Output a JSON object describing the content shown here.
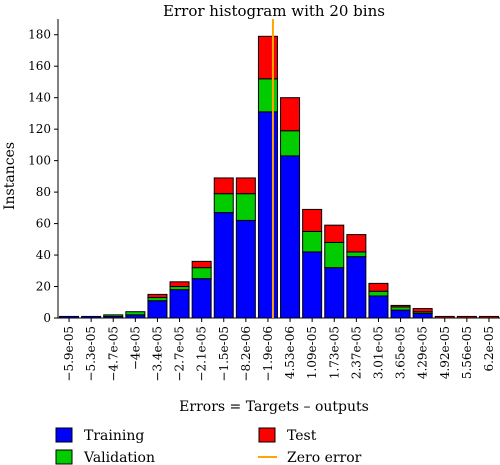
{
  "chart_data": {
    "type": "bar",
    "stacked": true,
    "title": "Error histogram with 20 bins",
    "xlabel": "Errors = Targets – outputs",
    "ylabel": "Instances",
    "ylim": [
      0,
      190
    ],
    "yticks": [
      0,
      20,
      40,
      60,
      80,
      100,
      120,
      140,
      160,
      180
    ],
    "categories": [
      "−5.9e-05",
      "−5.3e-05",
      "−4.7e-05",
      "−4e-05",
      "−3.4e-05",
      "−2.7e-05",
      "−2.1e-05",
      "−1.5e-05",
      "−8.2e-06",
      "−1.9e-06",
      "4.53e-06",
      "1.09e-05",
      "1.73e-05",
      "2.37e-05",
      "3.01e-05",
      "3.65e-05",
      "4.29e-05",
      "4.92e-05",
      "5.56e-05",
      "6.2e-05"
    ],
    "series": [
      {
        "name": "Training",
        "color": "#0000ff",
        "values": [
          1,
          1,
          1,
          2,
          11,
          18,
          25,
          67,
          62,
          131,
          103,
          42,
          32,
          39,
          14,
          5,
          3,
          0,
          0,
          0
        ]
      },
      {
        "name": "Validation",
        "color": "#00cc00",
        "values": [
          0,
          0,
          1,
          2,
          2,
          2,
          7,
          12,
          17,
          21,
          16,
          13,
          16,
          3,
          3,
          2,
          1,
          0,
          0,
          0
        ]
      },
      {
        "name": "Test",
        "color": "#ff0000",
        "values": [
          0,
          0,
          0,
          0,
          2,
          3,
          4,
          10,
          10,
          27,
          21,
          14,
          11,
          11,
          5,
          1,
          2,
          1,
          1,
          1
        ]
      }
    ],
    "zero_error": {
      "name": "Zero error",
      "color": "#ffa500",
      "x": 0
    },
    "legend": {
      "placement": "bottom",
      "items": [
        {
          "name": "Training",
          "color": "#0000ff",
          "kind": "box"
        },
        {
          "name": "Test",
          "color": "#ff0000",
          "kind": "box"
        },
        {
          "name": "Validation",
          "color": "#00cc00",
          "kind": "box"
        },
        {
          "name": "Zero error",
          "color": "#ffa500",
          "kind": "line"
        }
      ]
    }
  }
}
